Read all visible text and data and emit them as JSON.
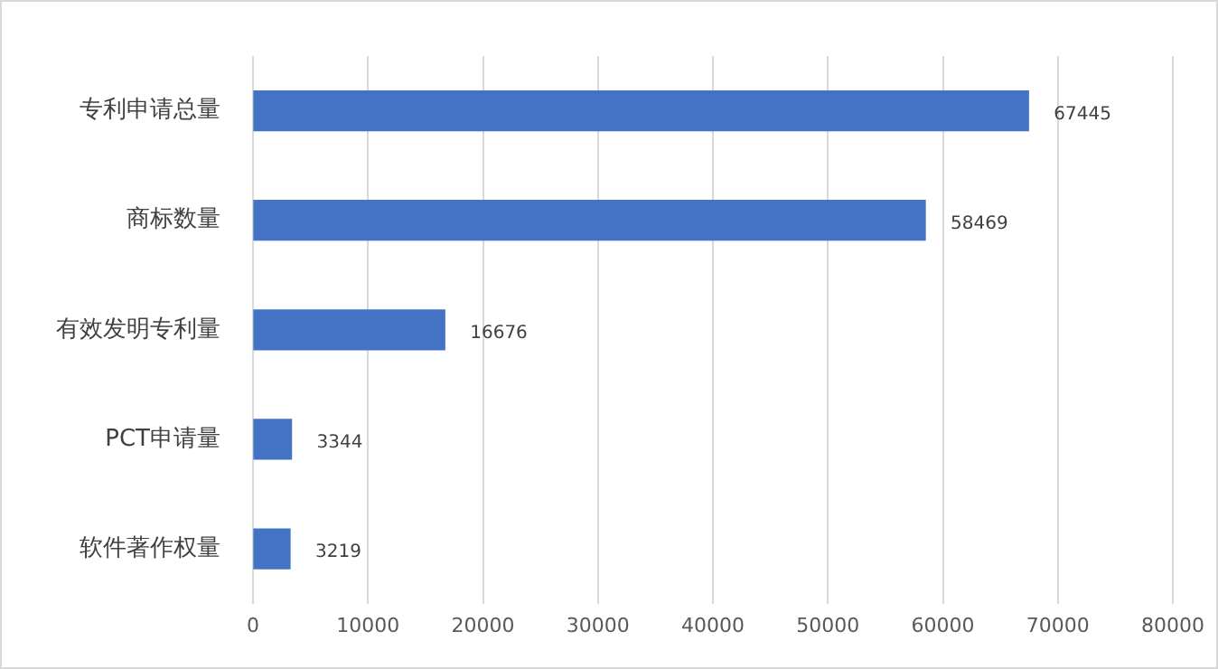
{
  "chart_data": {
    "type": "bar",
    "orientation": "horizontal",
    "categories": [
      "专利申请总量",
      "商标数量",
      "有效发明专利量",
      "PCT申请量",
      "软件著作权量"
    ],
    "values": [
      67445,
      58469,
      16676,
      3344,
      3219
    ],
    "color": "#4472c4",
    "xlim": [
      0,
      80000
    ],
    "xticks": [
      0,
      10000,
      20000,
      30000,
      40000,
      50000,
      60000,
      70000,
      80000
    ],
    "grid": "x",
    "data_labels": true,
    "legend": false
  }
}
